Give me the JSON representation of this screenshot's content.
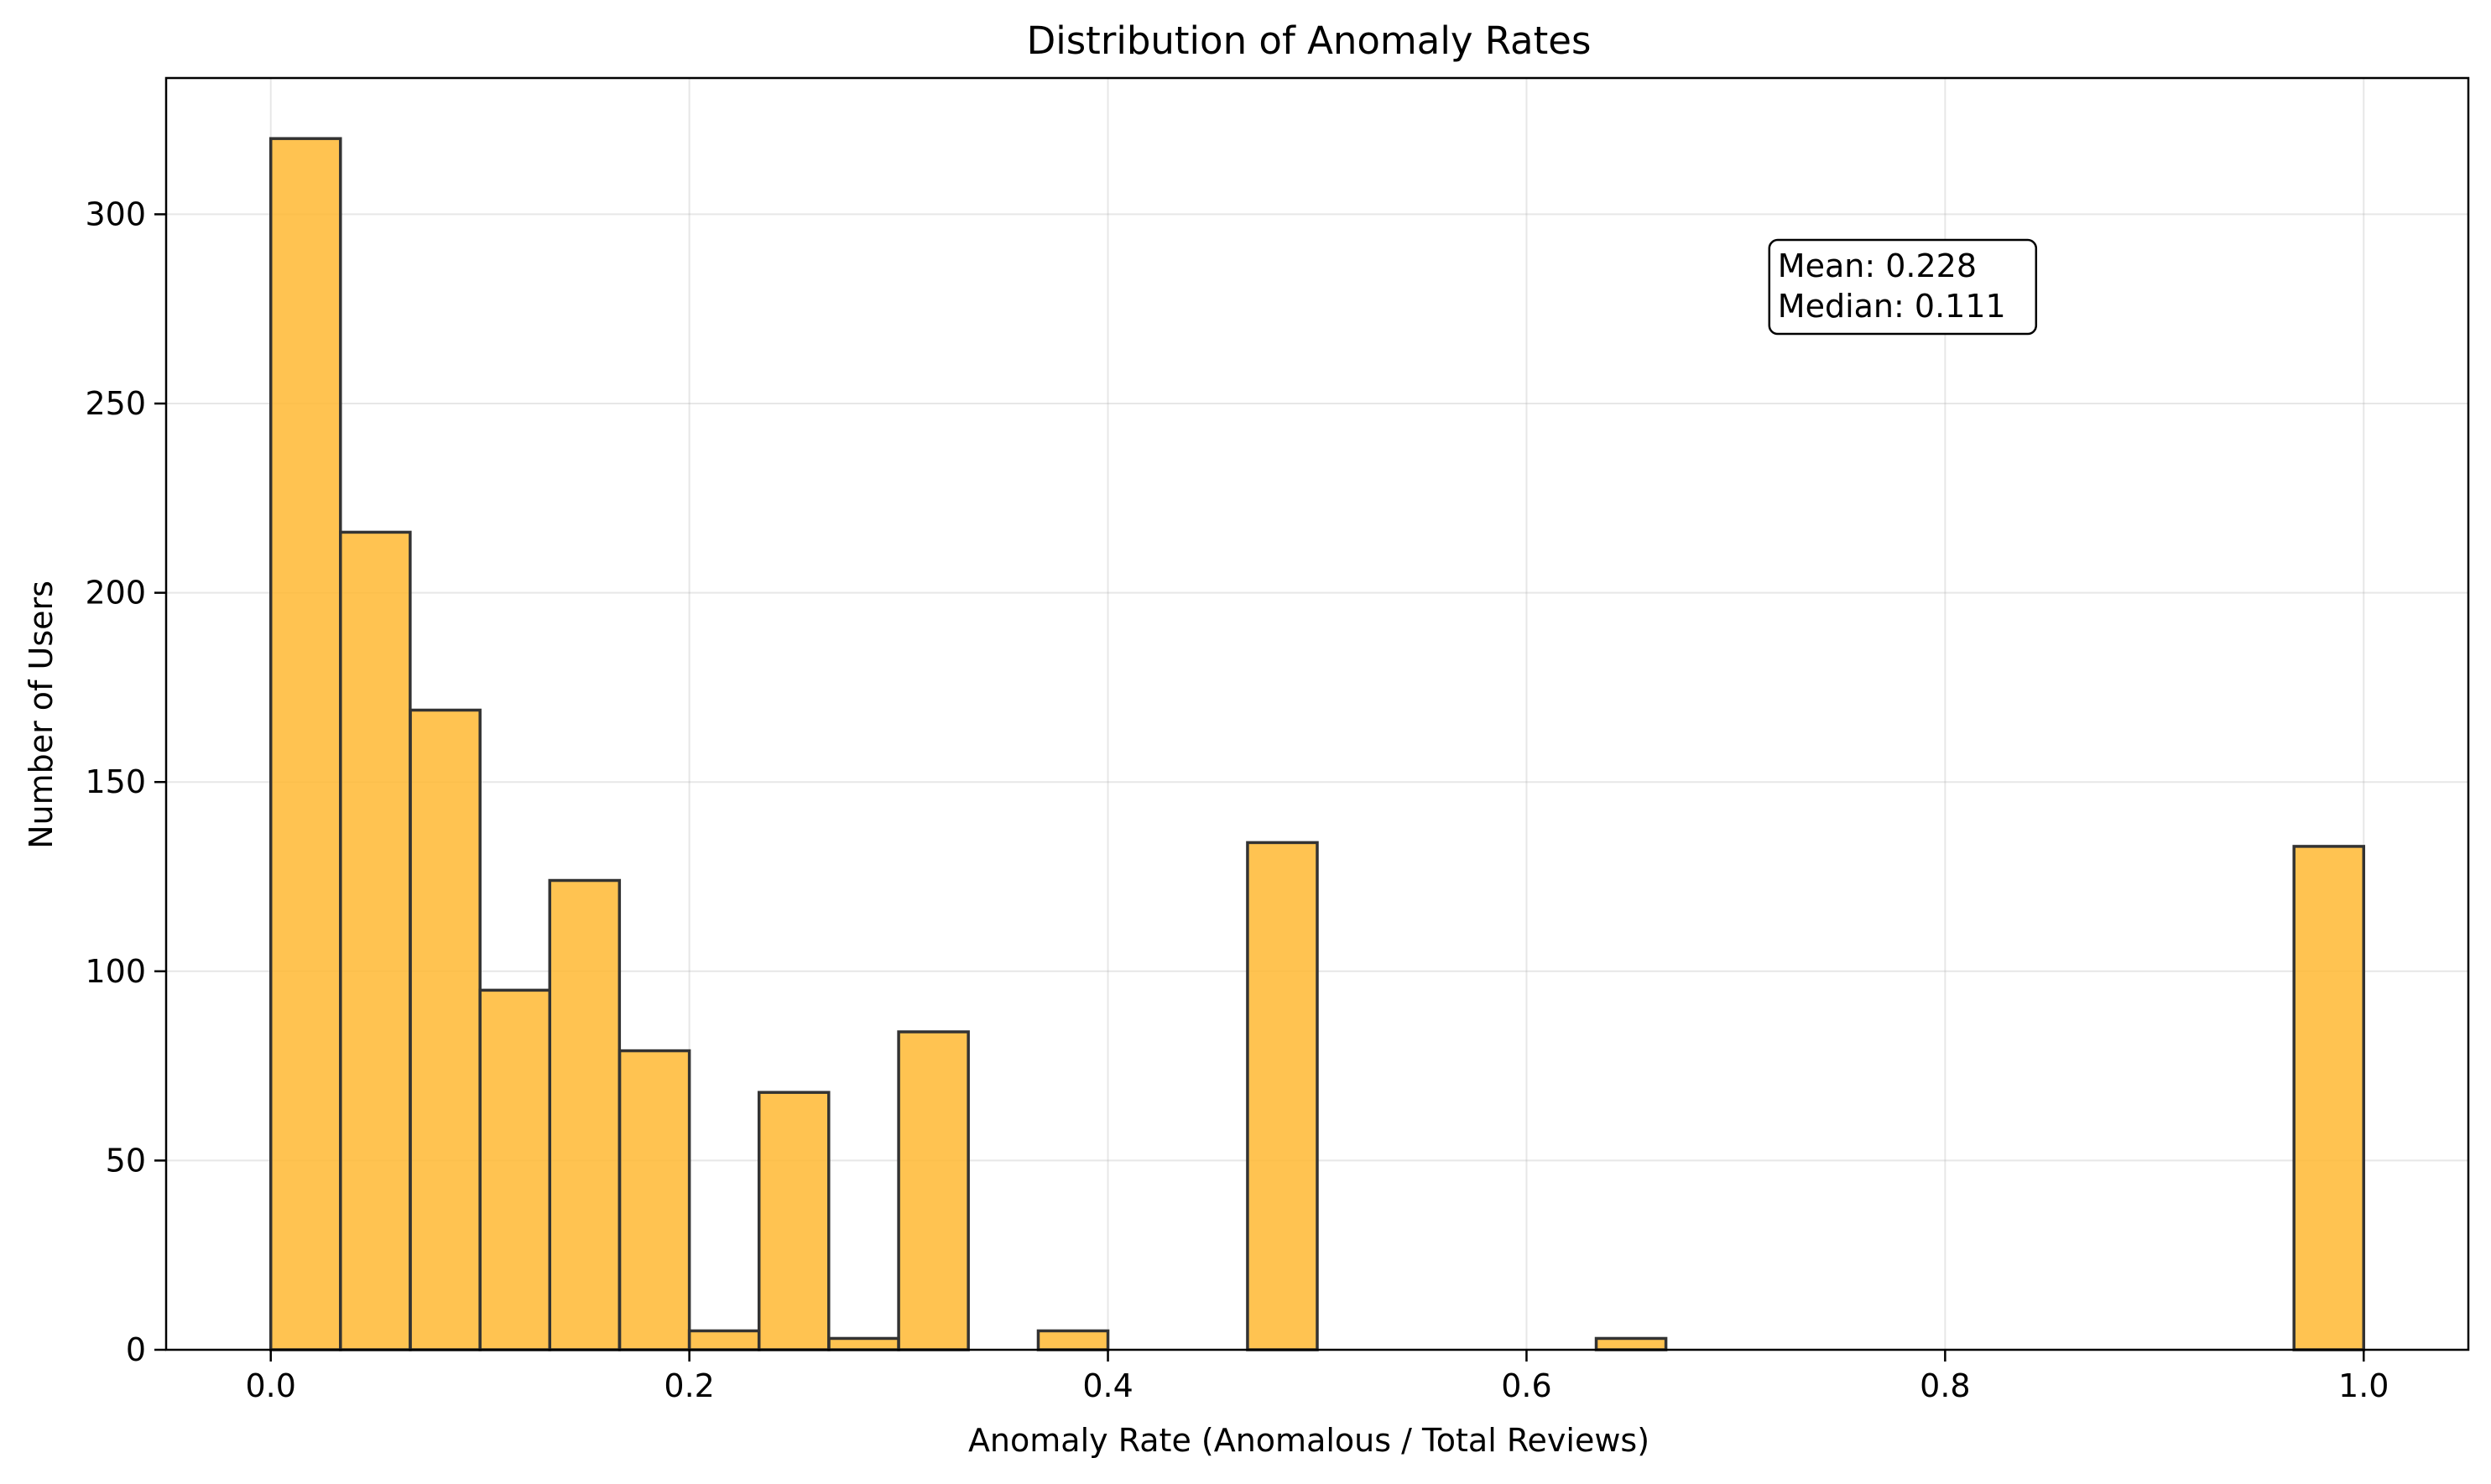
{
  "chart_data": {
    "type": "bar",
    "title": "Distribution of Anomaly Rates",
    "xlabel": "Anomaly Rate (Anomalous / Total Reviews)",
    "ylabel": "Number of Users",
    "xlim": [
      -0.05,
      1.05
    ],
    "ylim": [
      0,
      336
    ],
    "xticks": [
      0.0,
      0.2,
      0.4,
      0.6,
      0.8,
      1.0
    ],
    "xtick_labels": [
      "0.0",
      "0.2",
      "0.4",
      "0.6",
      "0.8",
      "1.0"
    ],
    "yticks": [
      0,
      50,
      100,
      150,
      200,
      250,
      300
    ],
    "ytick_labels": [
      "0",
      "50",
      "100",
      "150",
      "200",
      "250",
      "300"
    ],
    "grid": true,
    "bar_color": "#FFB833",
    "edge_color": "#333333",
    "bin_width": 0.0333,
    "bins": [
      {
        "x0": 0.0,
        "count": 320
      },
      {
        "x0": 0.0333,
        "count": 216
      },
      {
        "x0": 0.0667,
        "count": 169
      },
      {
        "x0": 0.1,
        "count": 95
      },
      {
        "x0": 0.1333,
        "count": 124
      },
      {
        "x0": 0.1667,
        "count": 79
      },
      {
        "x0": 0.2,
        "count": 5
      },
      {
        "x0": 0.2333,
        "count": 68
      },
      {
        "x0": 0.2667,
        "count": 3
      },
      {
        "x0": 0.3,
        "count": 84
      },
      {
        "x0": 0.3333,
        "count": 0
      },
      {
        "x0": 0.3667,
        "count": 5
      },
      {
        "x0": 0.4,
        "count": 0
      },
      {
        "x0": 0.4333,
        "count": 0
      },
      {
        "x0": 0.4667,
        "count": 134
      },
      {
        "x0": 0.5,
        "count": 0
      },
      {
        "x0": 0.5333,
        "count": 0
      },
      {
        "x0": 0.5667,
        "count": 0
      },
      {
        "x0": 0.6,
        "count": 0
      },
      {
        "x0": 0.6333,
        "count": 3
      },
      {
        "x0": 0.6667,
        "count": 0
      },
      {
        "x0": 0.7,
        "count": 0
      },
      {
        "x0": 0.7333,
        "count": 0
      },
      {
        "x0": 0.7667,
        "count": 0
      },
      {
        "x0": 0.8,
        "count": 0
      },
      {
        "x0": 0.8333,
        "count": 0
      },
      {
        "x0": 0.8667,
        "count": 0
      },
      {
        "x0": 0.9,
        "count": 0
      },
      {
        "x0": 0.9333,
        "count": 0
      },
      {
        "x0": 0.9667,
        "count": 133
      }
    ],
    "annotation": {
      "lines": [
        "Mean: 0.228",
        "Median: 0.111"
      ],
      "anchor_x": 0.72,
      "anchor_y": 291
    }
  }
}
